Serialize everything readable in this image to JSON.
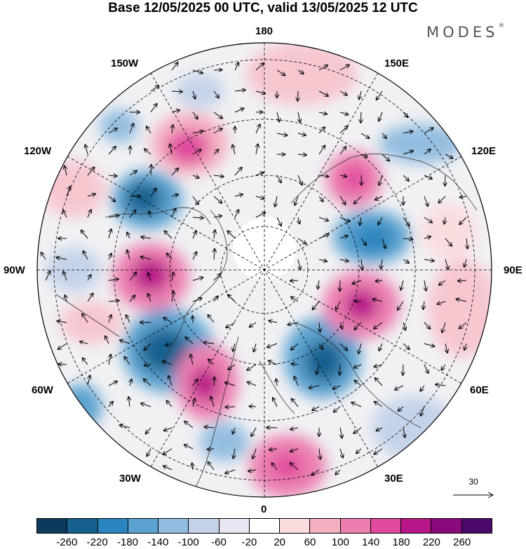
{
  "title": "Base 12/05/2025 00 UTC, valid 13/05/2025 12 UTC",
  "brand": {
    "text": "MODES",
    "mark": "®"
  },
  "map": {
    "projection": "north-polar-stereographic",
    "longitude_labels": [
      {
        "key": "top",
        "text": "180"
      },
      {
        "key": "150W",
        "text": "150W"
      },
      {
        "key": "150E",
        "text": "150E"
      },
      {
        "key": "120W",
        "text": "120W"
      },
      {
        "key": "120E",
        "text": "120E"
      },
      {
        "key": "90W",
        "text": "90W"
      },
      {
        "key": "90E",
        "text": "90E"
      },
      {
        "key": "60W",
        "text": "60W"
      },
      {
        "key": "60E",
        "text": "60E"
      },
      {
        "key": "30W",
        "text": "30W"
      },
      {
        "key": "30E",
        "text": "30E"
      },
      {
        "key": "bottom",
        "text": "0"
      }
    ],
    "vector_reference": "30"
  },
  "colorbar": {
    "colors": [
      "#0d3a5c",
      "#15608f",
      "#2a84bd",
      "#5ba2d0",
      "#93bde0",
      "#c4d3ea",
      "#e8e6f2",
      "#ffffff",
      "#fbdcdf",
      "#f4aec0",
      "#ec7fb0",
      "#e0489e",
      "#b81688",
      "#8a0a7c",
      "#4b0a6b"
    ],
    "ticks": [
      "-260",
      "-220",
      "-180",
      "-140",
      "-100",
      "-60",
      "-20",
      "20",
      "60",
      "100",
      "140",
      "180",
      "220",
      "260"
    ]
  }
}
